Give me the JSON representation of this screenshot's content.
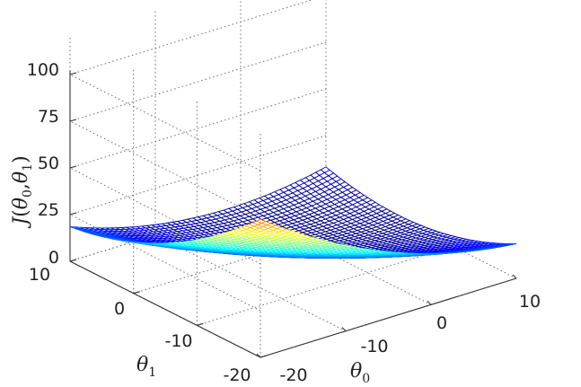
{
  "chart_data": {
    "type": "surface",
    "zlabel": "J(θ0,θ1)",
    "xlabel": "θ0",
    "ylabel": "θ1",
    "z_axis": {
      "label_main": "J",
      "label_args": [
        "θ",
        "0",
        "θ",
        "1"
      ],
      "ticks": [
        "0",
        "25",
        "50",
        "75",
        "100"
      ],
      "range": [
        0,
        100
      ]
    },
    "x_axis": {
      "label_main": "θ",
      "label_sub": "0",
      "ticks": [
        "-20",
        "-10",
        "0",
        "10"
      ],
      "range": [
        -20,
        10
      ]
    },
    "y_axis": {
      "label_main": "θ",
      "label_sub": "1",
      "ticks": [
        "-20",
        "-10",
        "0",
        "10"
      ],
      "range": [
        -20,
        10
      ]
    },
    "surface": {
      "function": "J = 0.048*((θ0-2.5)^2 + (θ1-2.5)^2) + 0.05*(θ0-2.5)*(θ1-2.5)",
      "theta0_range": [
        -20,
        10
      ],
      "theta1_range": [
        -20,
        10
      ],
      "z_range": [
        0,
        100
      ],
      "samples": 50,
      "colormap": "jet",
      "grid": true
    }
  }
}
